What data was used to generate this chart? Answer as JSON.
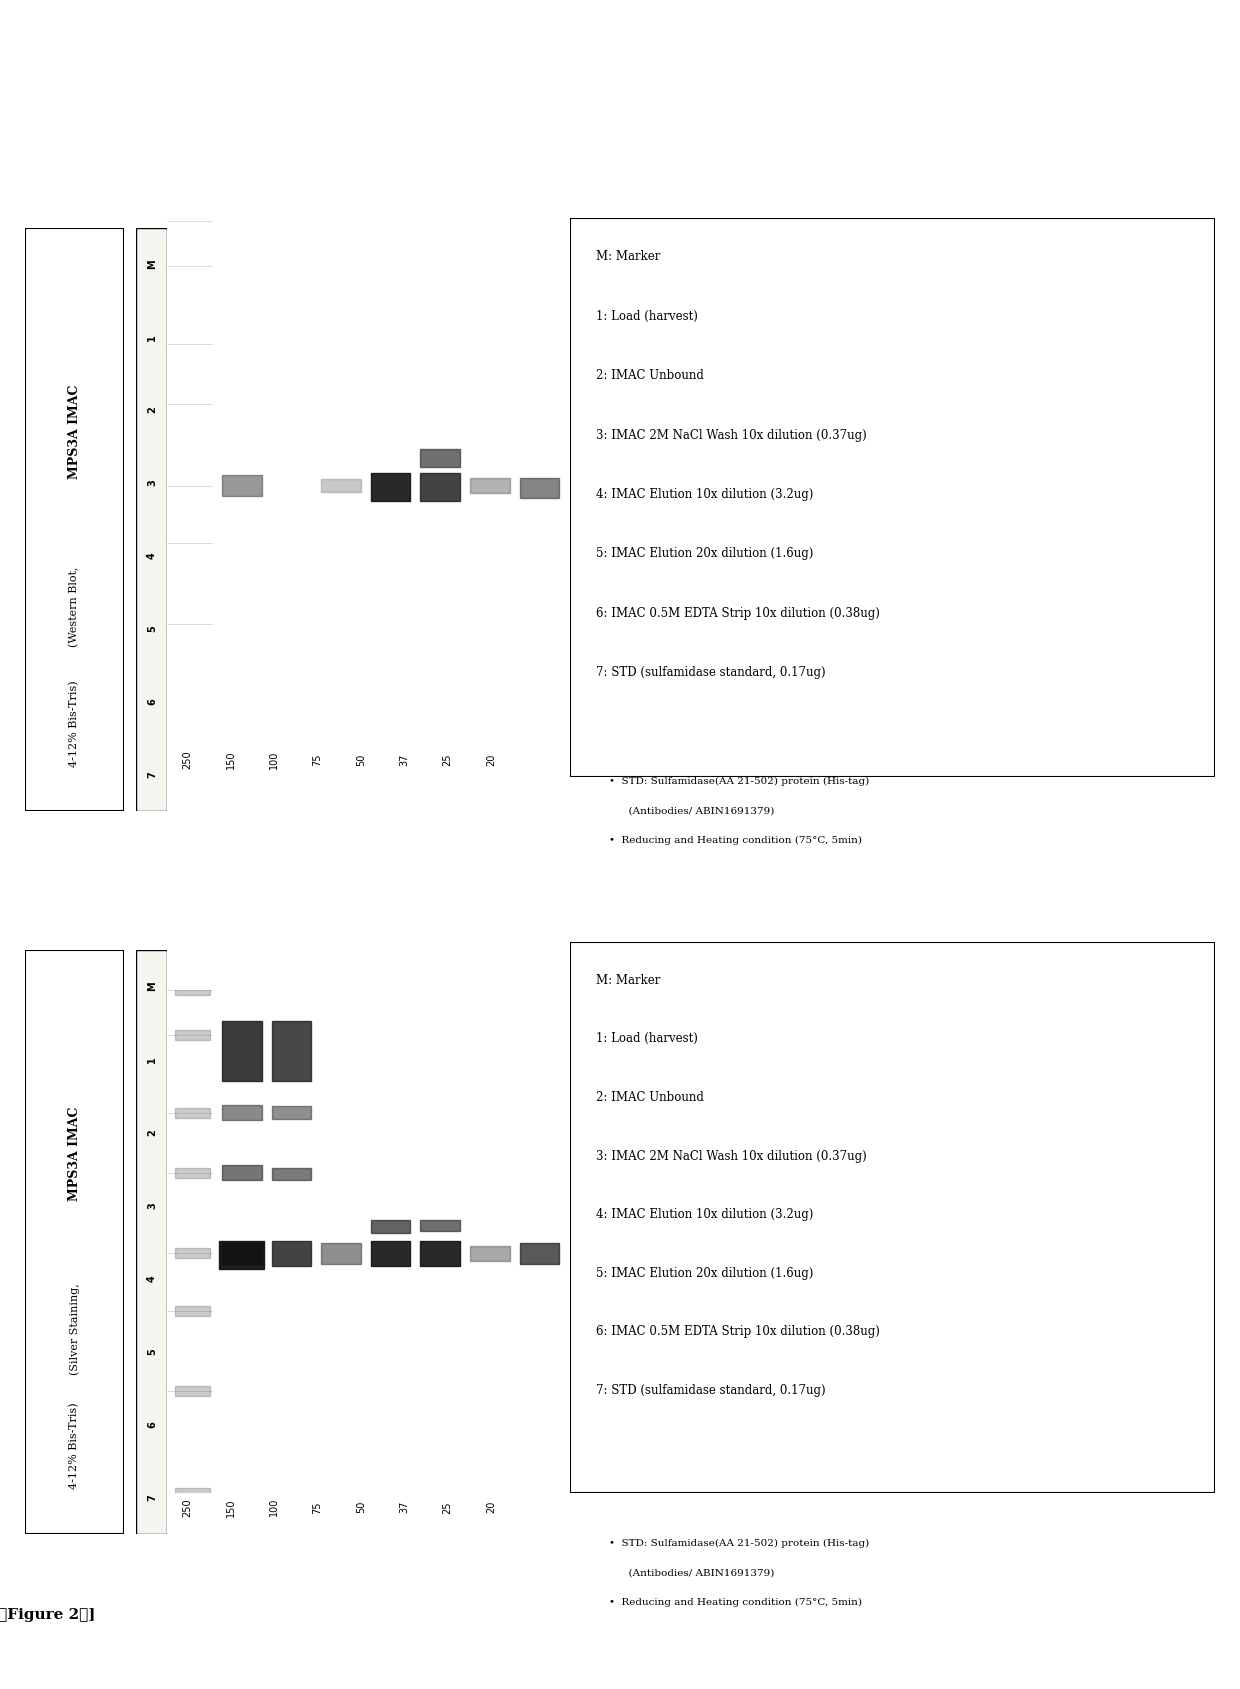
{
  "figure_label": "[　Figure 2　]",
  "panel1_title1": "MPS3A IMAC",
  "panel1_title2": "(Silver Staining,",
  "panel1_title3": "4-12% Bis-Tris)",
  "panel2_title1": "MPS3A IMAC",
  "panel2_title2": "(Western Blot,",
  "panel2_title3": "4-12% Bis-Tris)",
  "lane_labels": [
    "M",
    "1",
    "2",
    "3",
    "4",
    "5",
    "6",
    "7"
  ],
  "mw_labels": [
    "250",
    "150",
    "100",
    "75",
    "50",
    "37",
    "25",
    "20"
  ],
  "legend_lines": [
    "M: Marker",
    "1: Load (harvest)",
    "2: IMAC Unbound",
    "3: IMAC 2M NaCl Wash 10x dilution (0.37ug)",
    "4: IMAC Elution 10x dilution (3.2ug)",
    "5: IMAC Elution 20x dilution (1.6ug)",
    "6: IMAC 0.5M EDTA Strip 10x dilution (0.38ug)",
    "7: STD (sulfamidase standard, 0.17ug)"
  ],
  "footnote1": "STD: Sulfamidase(AA 21-502) protein (His-tag)",
  "footnote2": "(Antibodies/ ABIN1691379)",
  "footnote3": "Reducing and Heating condition (75°C, 5min)",
  "bg_color": "#e8e8e8",
  "gel_bg1": "#b0a898",
  "gel_bg2": "#c8c0b0"
}
